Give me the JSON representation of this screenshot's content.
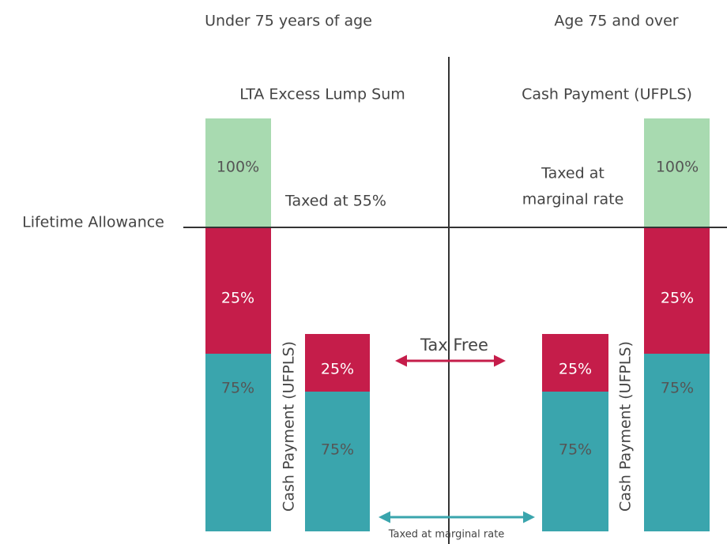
{
  "headers": [
    "Under 75 years of age",
    "Age 75 and over"
  ],
  "threshold": "Lifetime Allowance",
  "left": {
    "title": "LTA Excess Lump Sum",
    "note": "Taxed at 55%",
    "tall_bar": [
      "100%",
      "25%",
      "75%"
    ],
    "small_bar": [
      "25%",
      "75%"
    ],
    "small_bar_label": "Cash Payment (UFPLS)"
  },
  "right": {
    "title": "Cash Payment (UFPLS)",
    "note": [
      "Taxed at",
      "marginal rate"
    ],
    "tall_bar": [
      "100%",
      "25%",
      "75%"
    ],
    "small_bar": [
      "25%",
      "75%"
    ],
    "small_bar_label": "Cash Payment (UFPLS)"
  },
  "arrows": {
    "tax_free": "Tax Free",
    "marginal": "Taxed at marginal rate"
  }
}
